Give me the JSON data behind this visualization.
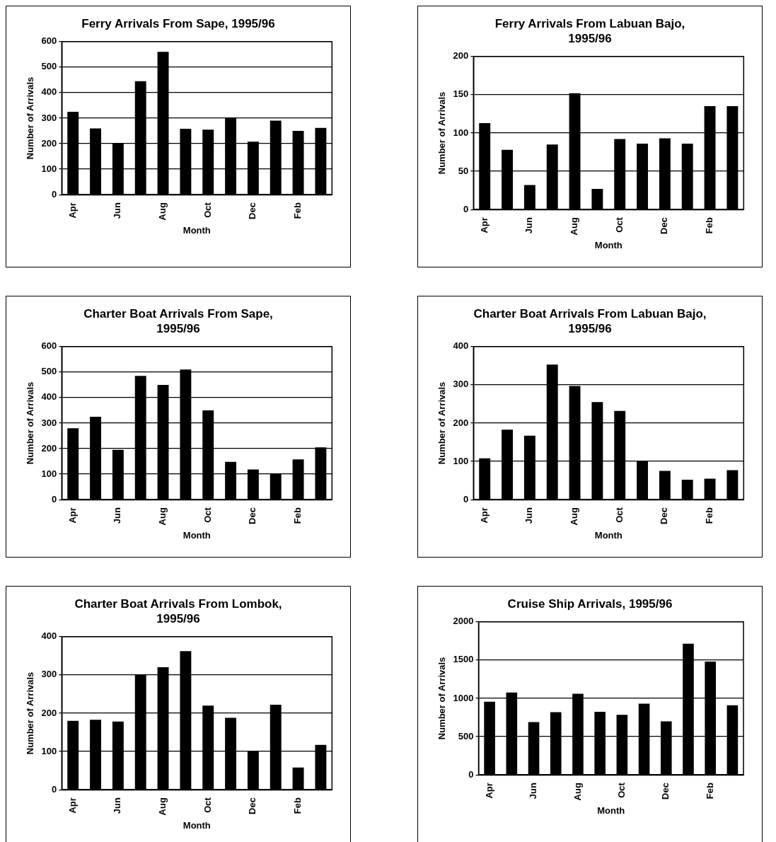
{
  "chart_data": [
    {
      "type": "bar",
      "title": "Ferry Arrivals From Sape, 1995/96",
      "xlabel": "Month",
      "ylabel": "Number of Arrivals",
      "categories": [
        "Apr",
        null,
        "Jun",
        null,
        "Aug",
        null,
        "Oct",
        null,
        "Dec",
        null,
        "Feb",
        null
      ],
      "values": [
        325,
        260,
        200,
        445,
        560,
        258,
        255,
        300,
        208,
        290,
        250,
        262
      ],
      "color": "#000000",
      "ylim": [
        0,
        600
      ],
      "yticks": [
        0,
        100,
        200,
        300,
        400,
        500,
        600
      ],
      "grid": "y"
    },
    {
      "type": "bar",
      "title": "Ferry Arrivals From Labuan Bajo, 1995/96",
      "xlabel": "Month",
      "ylabel": "Number of Arrivals",
      "categories": [
        "Apr",
        null,
        "Jun",
        null,
        "Aug",
        null,
        "Oct",
        null,
        "Dec",
        null,
        "Feb",
        null
      ],
      "values": [
        113,
        78,
        32,
        85,
        152,
        27,
        92,
        86,
        93,
        86,
        135,
        135
      ],
      "color": "#000000",
      "ylim": [
        0,
        200
      ],
      "yticks": [
        0,
        50,
        100,
        150,
        200
      ],
      "grid": "y"
    },
    {
      "type": "bar",
      "title": "Charter Boat Arrivals From Sape, 1995/96",
      "xlabel": "Month",
      "ylabel": "Number of Arrivals",
      "categories": [
        "Apr",
        null,
        "Jun",
        null,
        "Aug",
        null,
        "Oct",
        null,
        "Dec",
        null,
        "Feb",
        null
      ],
      "values": [
        280,
        325,
        195,
        485,
        450,
        510,
        350,
        148,
        118,
        100,
        158,
        205
      ],
      "color": "#000000",
      "ylim": [
        0,
        600
      ],
      "yticks": [
        0,
        100,
        200,
        300,
        400,
        500,
        600
      ],
      "grid": "y"
    },
    {
      "type": "bar",
      "title": "Charter Boat Arrivals From Labuan Bajo, 1995/96",
      "xlabel": "Month",
      "ylabel": "Number of Arrivals",
      "categories": [
        "Apr",
        null,
        "Jun",
        null,
        "Aug",
        null,
        "Oct",
        null,
        "Dec",
        null,
        "Feb",
        null
      ],
      "values": [
        108,
        183,
        167,
        353,
        297,
        255,
        232,
        100,
        75,
        52,
        55,
        77
      ],
      "color": "#000000",
      "ylim": [
        0,
        400
      ],
      "yticks": [
        0,
        100,
        200,
        300,
        400
      ],
      "grid": "y"
    },
    {
      "type": "bar",
      "title": "Charter Boat Arrivals From Lombok, 1995/96",
      "xlabel": "Month",
      "ylabel": "Number of Arrivals",
      "categories": [
        "Apr",
        null,
        "Jun",
        null,
        "Aug",
        null,
        "Oct",
        null,
        "Dec",
        null,
        "Feb",
        null
      ],
      "values": [
        180,
        183,
        178,
        300,
        320,
        362,
        220,
        188,
        102,
        222,
        58,
        117
      ],
      "color": "#000000",
      "ylim": [
        0,
        400
      ],
      "yticks": [
        0,
        100,
        200,
        300,
        400
      ],
      "grid": "y"
    },
    {
      "type": "bar",
      "title": "Cruise Ship Arrivals, 1995/96",
      "xlabel": "Month",
      "ylabel": "Number of Arrivals",
      "categories": [
        "Apr",
        null,
        "Jun",
        null,
        "Aug",
        null,
        "Oct",
        null,
        "Dec",
        null,
        "Feb",
        null
      ],
      "values": [
        955,
        1075,
        690,
        820,
        1060,
        825,
        785,
        930,
        700,
        1715,
        1480,
        910
      ],
      "color": "#000000",
      "ylim": [
        0,
        2000
      ],
      "yticks": [
        0,
        500,
        1000,
        1500,
        2000
      ],
      "grid": "y"
    }
  ]
}
